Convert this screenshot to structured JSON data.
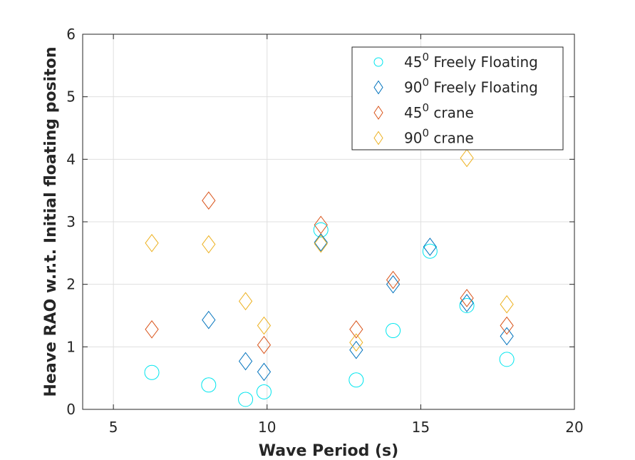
{
  "chart_data": {
    "type": "scatter",
    "title": "",
    "xlabel": "Wave Period (s)",
    "ylabel": "Heave RAO w.r.t. Initial floating positon",
    "xlim": [
      4,
      20
    ],
    "ylim": [
      0,
      6
    ],
    "xticks": [
      5,
      10,
      15,
      20
    ],
    "yticks": [
      0,
      1,
      2,
      3,
      4,
      5,
      6
    ],
    "grid": true,
    "legend_position": "top-right",
    "series": [
      {
        "name_base": "45",
        "name_sup": "0",
        "name_rest": "Freely Floating",
        "marker": "circle",
        "color": "#00e5ee",
        "points": [
          [
            6.25,
            0.59
          ],
          [
            8.1,
            0.39
          ],
          [
            9.3,
            0.16
          ],
          [
            9.9,
            0.28
          ],
          [
            11.75,
            2.87
          ],
          [
            12.9,
            0.47
          ],
          [
            14.1,
            1.26
          ],
          [
            15.3,
            2.53
          ],
          [
            16.5,
            1.66
          ],
          [
            17.8,
            0.8
          ]
        ]
      },
      {
        "name_base": "90",
        "name_sup": "0",
        "name_rest": "Freely Floating",
        "marker": "diamond",
        "color": "#0072bd",
        "points": [
          [
            8.1,
            1.43
          ],
          [
            9.3,
            0.77
          ],
          [
            9.9,
            0.6
          ],
          [
            11.75,
            2.67
          ],
          [
            12.9,
            0.95
          ],
          [
            14.1,
            2.0
          ],
          [
            15.3,
            2.6
          ],
          [
            16.5,
            1.7
          ],
          [
            17.8,
            1.17
          ]
        ]
      },
      {
        "name_base": "45",
        "name_sup": "0",
        "name_rest": "crane",
        "marker": "diamond",
        "color": "#d95319",
        "points": [
          [
            6.25,
            1.28
          ],
          [
            8.1,
            3.34
          ],
          [
            9.9,
            1.03
          ],
          [
            11.75,
            2.95
          ],
          [
            12.9,
            1.28
          ],
          [
            14.1,
            2.07
          ],
          [
            16.5,
            1.78
          ],
          [
            17.8,
            1.34
          ]
        ]
      },
      {
        "name_base": "90",
        "name_sup": "0",
        "name_rest": "crane",
        "marker": "diamond",
        "color": "#edb120",
        "points": [
          [
            6.25,
            2.66
          ],
          [
            8.1,
            2.64
          ],
          [
            9.3,
            1.73
          ],
          [
            9.9,
            1.34
          ],
          [
            11.75,
            2.65
          ],
          [
            12.9,
            1.07
          ],
          [
            16.5,
            4.02
          ],
          [
            17.8,
            1.68
          ]
        ]
      }
    ]
  }
}
